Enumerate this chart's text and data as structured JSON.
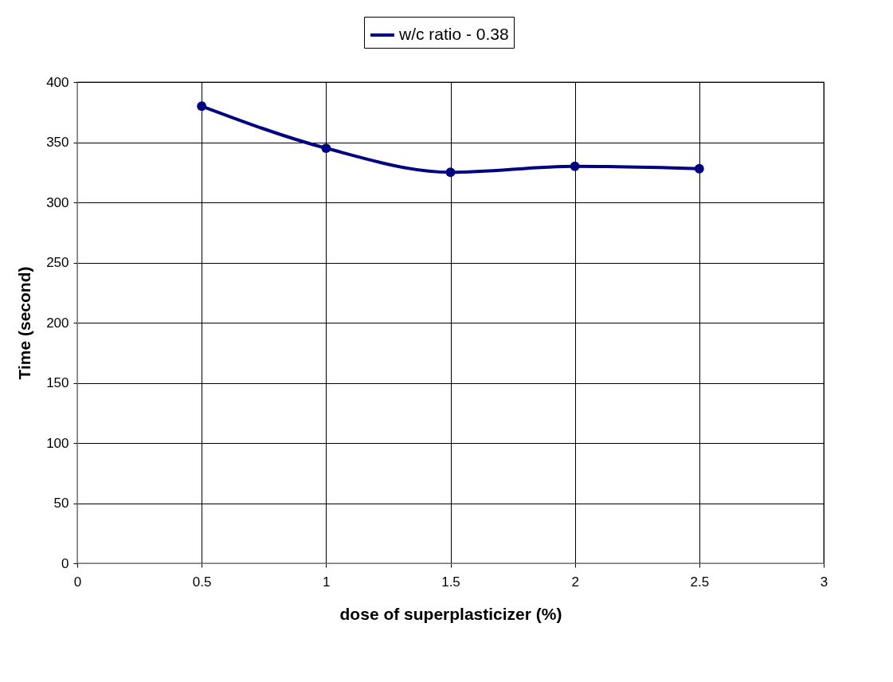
{
  "chart_data": {
    "type": "line",
    "xlabel": "dose of superplasticizer (%)",
    "ylabel": "Time (second)",
    "x": [
      0.5,
      1,
      1.5,
      2,
      2.5
    ],
    "series": [
      {
        "name": "w/c ratio - 0.38",
        "color": "#000080",
        "values": [
          380,
          345,
          325,
          330,
          328
        ]
      }
    ],
    "xlim": [
      0,
      3
    ],
    "xticks": [
      0,
      0.5,
      1,
      1.5,
      2,
      2.5,
      3
    ],
    "ylim": [
      0,
      400
    ],
    "yticks": [
      0,
      50,
      100,
      150,
      200,
      250,
      300,
      350,
      400
    ],
    "grid": true,
    "legend": "top",
    "marker": "circle",
    "line_style": "solid"
  }
}
